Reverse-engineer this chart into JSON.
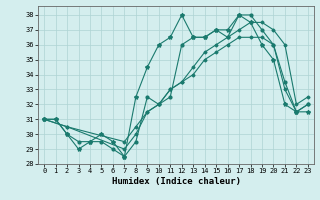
{
  "xlabel": "Humidex (Indice chaleur)",
  "bg_color": "#d4eeee",
  "grid_color": "#aed4d4",
  "line_color": "#1a7a6e",
  "xlim": [
    -0.5,
    23.5
  ],
  "ylim": [
    28,
    38.6
  ],
  "yticks": [
    28,
    29,
    30,
    31,
    32,
    33,
    34,
    35,
    36,
    37,
    38
  ],
  "xticks": [
    0,
    1,
    2,
    3,
    4,
    5,
    6,
    7,
    8,
    9,
    10,
    11,
    12,
    13,
    14,
    15,
    16,
    17,
    18,
    19,
    20,
    21,
    22,
    23
  ],
  "line1_x": [
    0,
    1,
    2,
    3,
    4,
    5,
    6,
    7,
    8,
    9,
    10,
    11,
    12,
    13,
    14,
    15,
    16,
    17,
    18,
    19,
    20,
    21,
    22,
    23
  ],
  "line1_y": [
    31.0,
    31.0,
    30.0,
    29.5,
    29.5,
    29.5,
    29.0,
    28.5,
    29.5,
    32.5,
    32.0,
    32.5,
    36.0,
    36.5,
    36.5,
    37.0,
    36.5,
    38.0,
    38.0,
    37.0,
    36.0,
    33.5,
    31.5,
    32.0
  ],
  "line2_x": [
    0,
    1,
    2,
    3,
    4,
    5,
    6,
    7,
    8,
    9,
    10,
    11,
    12,
    13,
    14,
    15,
    16,
    17,
    18,
    19,
    20,
    21,
    22,
    23
  ],
  "line2_y": [
    31.0,
    31.0,
    30.0,
    29.0,
    29.5,
    30.0,
    29.5,
    28.5,
    32.5,
    34.5,
    36.0,
    36.5,
    38.0,
    36.5,
    36.5,
    37.0,
    37.0,
    38.0,
    37.5,
    36.0,
    35.0,
    32.0,
    31.5,
    31.5
  ],
  "line3_x": [
    0,
    2,
    7,
    8,
    9,
    10,
    11,
    12,
    13,
    14,
    15,
    16,
    17,
    18,
    19,
    20,
    21,
    22,
    23
  ],
  "line3_y": [
    31.0,
    30.5,
    29.0,
    30.0,
    31.5,
    32.0,
    33.0,
    33.5,
    34.0,
    35.0,
    35.5,
    36.0,
    36.5,
    36.5,
    36.5,
    36.0,
    33.0,
    31.5,
    32.0
  ],
  "line4_x": [
    0,
    2,
    7,
    8,
    9,
    10,
    11,
    12,
    13,
    14,
    15,
    16,
    17,
    18,
    19,
    20,
    21,
    22,
    23
  ],
  "line4_y": [
    31.0,
    30.5,
    29.5,
    30.5,
    31.5,
    32.0,
    33.0,
    33.5,
    34.5,
    35.5,
    36.0,
    36.5,
    37.0,
    37.5,
    37.5,
    37.0,
    36.0,
    32.0,
    32.5
  ]
}
